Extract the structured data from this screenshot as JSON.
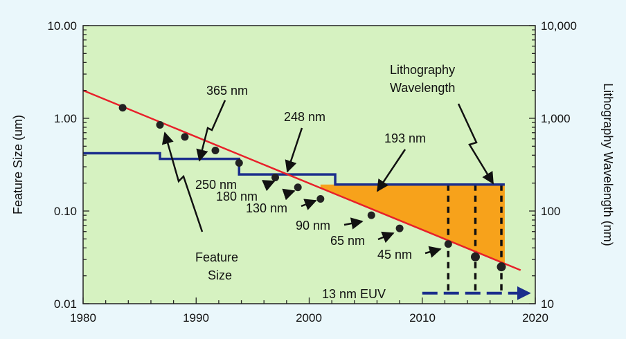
{
  "chart_data": {
    "type": "scatter",
    "xlim": [
      1980,
      2020
    ],
    "x_ticks": [
      "1980",
      "1990",
      "2000",
      "2010",
      "2020"
    ],
    "y_left": {
      "label": "Feature Size (um)",
      "scale": "log",
      "lim": [
        0.01,
        10
      ],
      "ticks": [
        "10.00",
        "1.00",
        "0.10",
        "0.01"
      ]
    },
    "y_right": {
      "label": "Lithography Wavelength (nm)",
      "scale": "log",
      "lim": [
        10,
        10000
      ],
      "ticks": [
        "10,000",
        "1,000",
        "100",
        "10"
      ]
    },
    "series": [
      {
        "name": "Feature Size",
        "type": "scatter",
        "x": [
          1983.5,
          1986.8,
          1989,
          1991.7,
          1993.8,
          1997,
          1999,
          2001,
          2005.5,
          2008,
          2012.3,
          2014.7,
          2017
        ],
        "y": [
          1.3,
          0.85,
          0.63,
          0.45,
          0.33,
          0.23,
          0.18,
          0.135,
          0.09,
          0.065,
          0.044,
          0.032,
          0.025
        ]
      }
    ],
    "trend_line": {
      "x": [
        1980,
        2018.7
      ],
      "y": [
        2.0,
        0.023
      ]
    },
    "wavelength_steps": {
      "x": [
        1980,
        1986.8,
        1986.8,
        1993.8,
        1993.8,
        2002.3,
        2002.3,
        2017.3
      ],
      "y": [
        420,
        420,
        365,
        365,
        248,
        248,
        193,
        193
      ]
    },
    "euv": {
      "x": [
        2010,
        2019.5
      ],
      "wavelength": 13
    },
    "dashed_drops_x": [
      2012.3,
      2014.7,
      2017
    ],
    "annotations": [
      "365 nm",
      "248 nm",
      "193 nm",
      "Lithography",
      "Wavelength",
      "250 nm",
      "180 nm",
      "130 nm",
      "90 nm",
      "65 nm",
      "45 nm",
      "Feature",
      "Size",
      "13 nm EUV"
    ],
    "colors": {
      "trend": "#e8202a",
      "steps": "#1b2e8c",
      "fill": "#f7a21b",
      "plot_bg": "#d6f2c1",
      "page_bg": "#eaf7fb",
      "points": "#222222"
    }
  }
}
